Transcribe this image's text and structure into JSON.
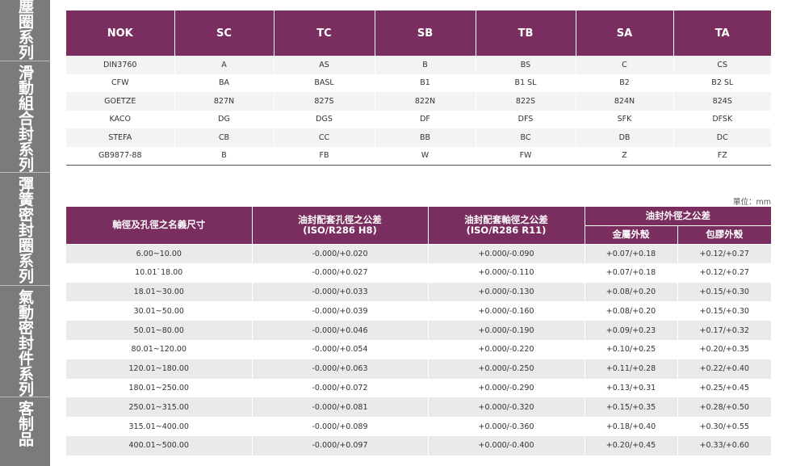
{
  "sidebar": {
    "items": [
      {
        "label": "塵圈系列"
      },
      {
        "label": "滑動組合封系列"
      },
      {
        "label": "彈簧密封圈系列"
      },
      {
        "label": "氣動密封件系列"
      },
      {
        "label": "客制品"
      }
    ]
  },
  "brand_table": {
    "headers": [
      "NOK",
      "SC",
      "TC",
      "SB",
      "TB",
      "SA",
      "TA"
    ],
    "rows": [
      [
        "DIN3760",
        "A",
        "AS",
        "B",
        "BS",
        "C",
        "CS"
      ],
      [
        "CFW",
        "BA",
        "BASL",
        "B1",
        "B1 SL",
        "B2",
        "B2 SL"
      ],
      [
        "GOETZE",
        "827N",
        "827S",
        "822N",
        "822S",
        "824N",
        "824S"
      ],
      [
        "KACO",
        "DG",
        "DGS",
        "DF",
        "DFS",
        "SFK",
        "DFSK"
      ],
      [
        "STEFA",
        "CB",
        "CC",
        "BB",
        "BC",
        "DB",
        "DC"
      ],
      [
        "GB9877-88",
        "B",
        "FB",
        "W",
        "FW",
        "Z",
        "FZ"
      ]
    ]
  },
  "tolerance_table": {
    "unit": "單位：mm",
    "headers": {
      "size": "軸徑及孔徑之名義尺寸",
      "bore_line1": "油封配套孔徑之公差",
      "bore_line2": "(ISO/R286 H8)",
      "shaft_line1": "油封配套軸徑之公差",
      "shaft_line2": "(ISO/R286 R11)",
      "outer": "油封外徑之公差",
      "metal": "金屬外殼",
      "rubber": "包膠外殼"
    },
    "rows": [
      [
        "6.00~10.00",
        "-0.000/+0.020",
        "+0.000/-0.090",
        "+0.07/+0.18",
        "+0.12/+0.27"
      ],
      [
        "10.01`18.00",
        "-0.000/+0.027",
        "+0.000/-0.110",
        "+0.07/+0.18",
        "+0.12/+0.27"
      ],
      [
        "18.01~30.00",
        "-0.000/+0.033",
        "+0.000/-0.130",
        "+0.08/+0.20",
        "+0.15/+0.30"
      ],
      [
        "30.01~50.00",
        "-0.000/+0.039",
        "+0.000/-0.160",
        "+0.08/+0.20",
        "+0.15/+0.30"
      ],
      [
        "50.01~80.00",
        "-0.000/+0.046",
        "+0.000/-0.190",
        "+0.09/+0.23",
        "+0.17/+0.32"
      ],
      [
        "80.01~120.00",
        "-0.000/+0.054",
        "+0.000/-0.220",
        "+0.10/+0.25",
        "+0.20/+0.35"
      ],
      [
        "120.01~180.00",
        "-0.000/+0.063",
        "+0.000/-0.250",
        "+0.11/+0.28",
        "+0.22/+0.40"
      ],
      [
        "180.01~250.00",
        "-0.000/+0.072",
        "+0.000/-0.290",
        "+0.13/+0.31",
        "+0.25/+0.45"
      ],
      [
        "250.01~315.00",
        "-0.000/+0.081",
        "+0.000/-0.320",
        "+0.15/+0.35",
        "+0.28/+0.50"
      ],
      [
        "315.01~400.00",
        "-0.000/+0.089",
        "+0.000/-0.360",
        "+0.18/+0.40",
        "+0.30/+0.55"
      ],
      [
        "400.01~500.00",
        "-0.000/+0.097",
        "+0.000/-0.400",
        "+0.20/+0.45",
        "+0.33/+0.60"
      ]
    ]
  },
  "colors": {
    "header_bg": "#7a2e5f",
    "sidebar_bg": "#7b7b7b"
  }
}
